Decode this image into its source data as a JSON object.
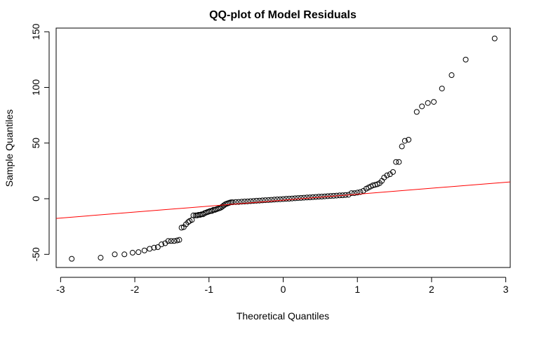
{
  "chart_data": {
    "type": "scatter",
    "title": "QQ-plot of Model Residuals",
    "x_label": "Theoretical Quantiles",
    "y_label": "Sample Quantiles",
    "x": [
      -2.85,
      -2.46,
      -2.27,
      -2.14,
      -2.03,
      -1.95,
      -1.87,
      -1.8,
      -1.74,
      -1.69,
      -1.64,
      -1.59,
      -1.55,
      -1.51,
      -1.47,
      -1.43,
      -1.4,
      -1.37,
      -1.34,
      -1.31,
      -1.28,
      -1.26,
      -1.23,
      -1.21,
      -1.18,
      -1.16,
      -1.14,
      -1.12,
      -1.1,
      -1.08,
      -1.06,
      -1.04,
      -1.02,
      -1.0,
      -0.98,
      -0.96,
      -0.94,
      -0.92,
      -0.9,
      -0.88,
      -0.86,
      -0.84,
      -0.82,
      -0.8,
      -0.78,
      -0.76,
      -0.74,
      -0.72,
      -0.7,
      -0.68,
      -0.64,
      -0.6,
      -0.56,
      -0.52,
      -0.48,
      -0.44,
      -0.4,
      -0.36,
      -0.32,
      -0.28,
      -0.24,
      -0.2,
      -0.16,
      -0.12,
      -0.08,
      -0.04,
      0,
      0.04,
      0.08,
      0.12,
      0.16,
      0.2,
      0.24,
      0.28,
      0.32,
      0.36,
      0.4,
      0.44,
      0.48,
      0.52,
      0.56,
      0.6,
      0.64,
      0.68,
      0.72,
      0.76,
      0.8,
      0.84,
      0.88,
      0.92,
      0.96,
      1.0,
      1.04,
      1.08,
      1.12,
      1.15,
      1.18,
      1.21,
      1.24,
      1.27,
      1.3,
      1.33,
      1.36,
      1.4,
      1.44,
      1.48,
      1.52,
      1.56,
      1.6,
      1.64,
      1.69,
      1.8,
      1.87,
      1.95,
      2.03,
      2.14,
      2.27,
      2.46,
      2.85
    ],
    "values": [
      -54,
      -53,
      -50,
      -50,
      -48.5,
      -48,
      -46.5,
      -45,
      -44,
      -43.5,
      -41,
      -40,
      -38,
      -38,
      -38,
      -37.5,
      -37,
      -26,
      -25.5,
      -23,
      -21,
      -20,
      -19,
      -15,
      -15,
      -15,
      -14.5,
      -14.5,
      -14,
      -14,
      -13,
      -12.5,
      -12,
      -11.5,
      -11,
      -11,
      -10,
      -10,
      -9.5,
      -9,
      -8.5,
      -8,
      -7,
      -6,
      -5,
      -4.5,
      -4,
      -3.5,
      -3.2,
      -3.2,
      -3.0,
      -2.9,
      -2.7,
      -2.5,
      -2.4,
      -2.2,
      -2.0,
      -1.8,
      -1.7,
      -1.5,
      -1.3,
      -1.2,
      -1.0,
      -0.8,
      -0.6,
      -0.5,
      -0.3,
      -0.1,
      0.0,
      0.2,
      0.4,
      0.6,
      0.7,
      0.9,
      1.1,
      1.2,
      1.4,
      1.6,
      1.8,
      1.9,
      2.1,
      2.3,
      2.5,
      2.6,
      2.8,
      3.0,
      3.1,
      3.3,
      3.5,
      5,
      5,
      5.5,
      6,
      7,
      9,
      10,
      11,
      12,
      12.5,
      13,
      14,
      16,
      19,
      21,
      22,
      24,
      33,
      33,
      47,
      52,
      53,
      78,
      83,
      86,
      87,
      99,
      111,
      125,
      144
    ],
    "color": "#000000",
    "reference_line": {
      "x": [
        -3.06,
        3.06
      ],
      "y": [
        -17.7,
        15.1
      ],
      "color": "#ff0000"
    },
    "xlim": [
      -3.06,
      3.06
    ],
    "ylim": [
      -61.8,
      153.3
    ],
    "xticks": [
      -3,
      -2,
      -1,
      0,
      1,
      2,
      3
    ],
    "yticks": [
      -50,
      0,
      50,
      100,
      150
    ]
  }
}
